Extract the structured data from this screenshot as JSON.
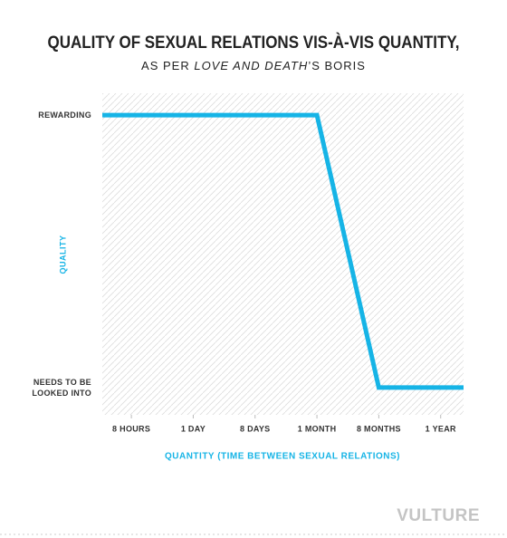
{
  "chart_data": {
    "type": "line",
    "title": "QUALITY OF SEXUAL RELATIONS VIS-À-VIS QUANTITY,",
    "subtitle": [
      "AS PER ",
      "LOVE AND DEATH",
      "’S BORIS"
    ],
    "x_label": "QUANTITY (TIME BETWEEN SEXUAL RELATIONS)",
    "y_label": "QUALITY",
    "x": [
      -0.47,
      3,
      4,
      5.37
    ],
    "values": [
      1,
      1,
      0,
      0
    ],
    "color": "#16b4e6",
    "xlim": [
      -0.47,
      5.37
    ],
    "xticks": [
      {
        "value": 0,
        "label": "8 HOURS"
      },
      {
        "value": 1,
        "label": "1 DAY"
      },
      {
        "value": 2,
        "label": "8 DAYS"
      },
      {
        "value": 3,
        "label": "1 MONTH"
      },
      {
        "value": 4,
        "label": "8 MONTHS"
      },
      {
        "value": 5,
        "label": "1 YEAR"
      }
    ],
    "ylim": [
      -0.1,
      1.08
    ],
    "yticks": [
      {
        "value": 1,
        "label": "REWARDING"
      },
      {
        "value": 0,
        "label": "NEEDS TO BE\nLOOKED INTO"
      }
    ],
    "logo": "VULTURE"
  }
}
